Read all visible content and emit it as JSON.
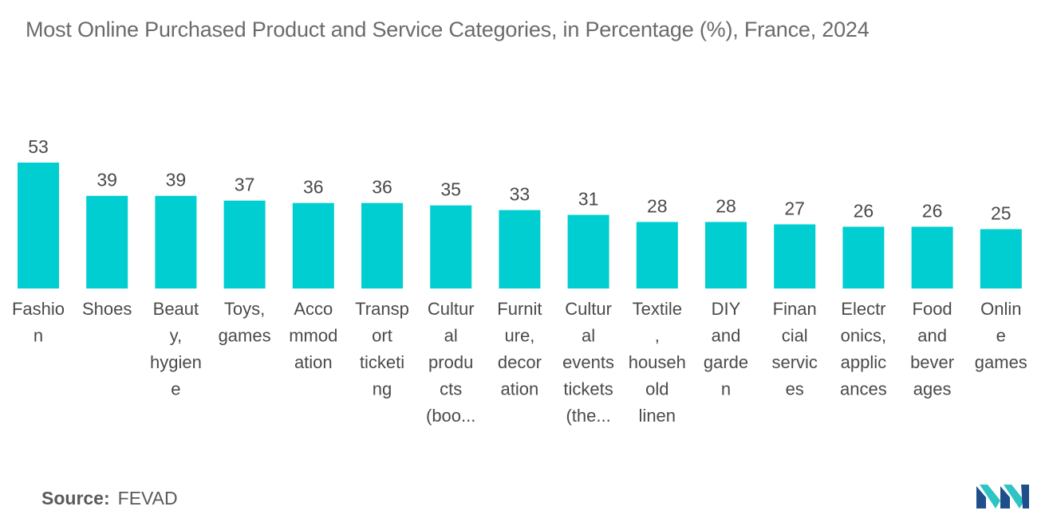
{
  "chart_data": {
    "type": "bar",
    "title": "Most Online Purchased Product and Service Categories, in Percentage (%), France, 2024",
    "xlabel": "",
    "ylabel": "",
    "ylim": [
      0,
      53
    ],
    "grid": false,
    "bar_color": "#00CED1",
    "categories": [
      [
        "Fashio",
        "n"
      ],
      [
        "Shoes"
      ],
      [
        "Beaut",
        "y,",
        "hygien",
        "e"
      ],
      [
        "Toys,",
        "games"
      ],
      [
        "Acco",
        "mmod",
        "ation"
      ],
      [
        "Transp",
        "ort",
        "ticketi",
        "ng"
      ],
      [
        "Cultur",
        "al",
        "produ",
        "cts",
        "(boo..."
      ],
      [
        "Furnit",
        "ure,",
        "decor",
        "ation"
      ],
      [
        "Cultur",
        "al",
        "events",
        "tickets",
        "(the..."
      ],
      [
        "Textile",
        ",",
        "househ",
        "old",
        "linen"
      ],
      [
        "DIY",
        "and",
        "garde",
        "n"
      ],
      [
        "Finan",
        "cial",
        "servic",
        "es"
      ],
      [
        "Electr",
        "onics,",
        "applic",
        "ances"
      ],
      [
        "Food",
        "and",
        "bever",
        "ages"
      ],
      [
        "Onlin",
        "e",
        "games"
      ]
    ],
    "values": [
      53,
      39,
      39,
      37,
      36,
      36,
      35,
      33,
      31,
      28,
      28,
      27,
      26,
      26,
      25
    ]
  },
  "source": {
    "label": "Source:",
    "value": "FEVAD"
  },
  "logo": {
    "name": "mordor-intelligence-logo-icon",
    "colors": [
      "#1f4e8c",
      "#2ec4c4"
    ]
  }
}
